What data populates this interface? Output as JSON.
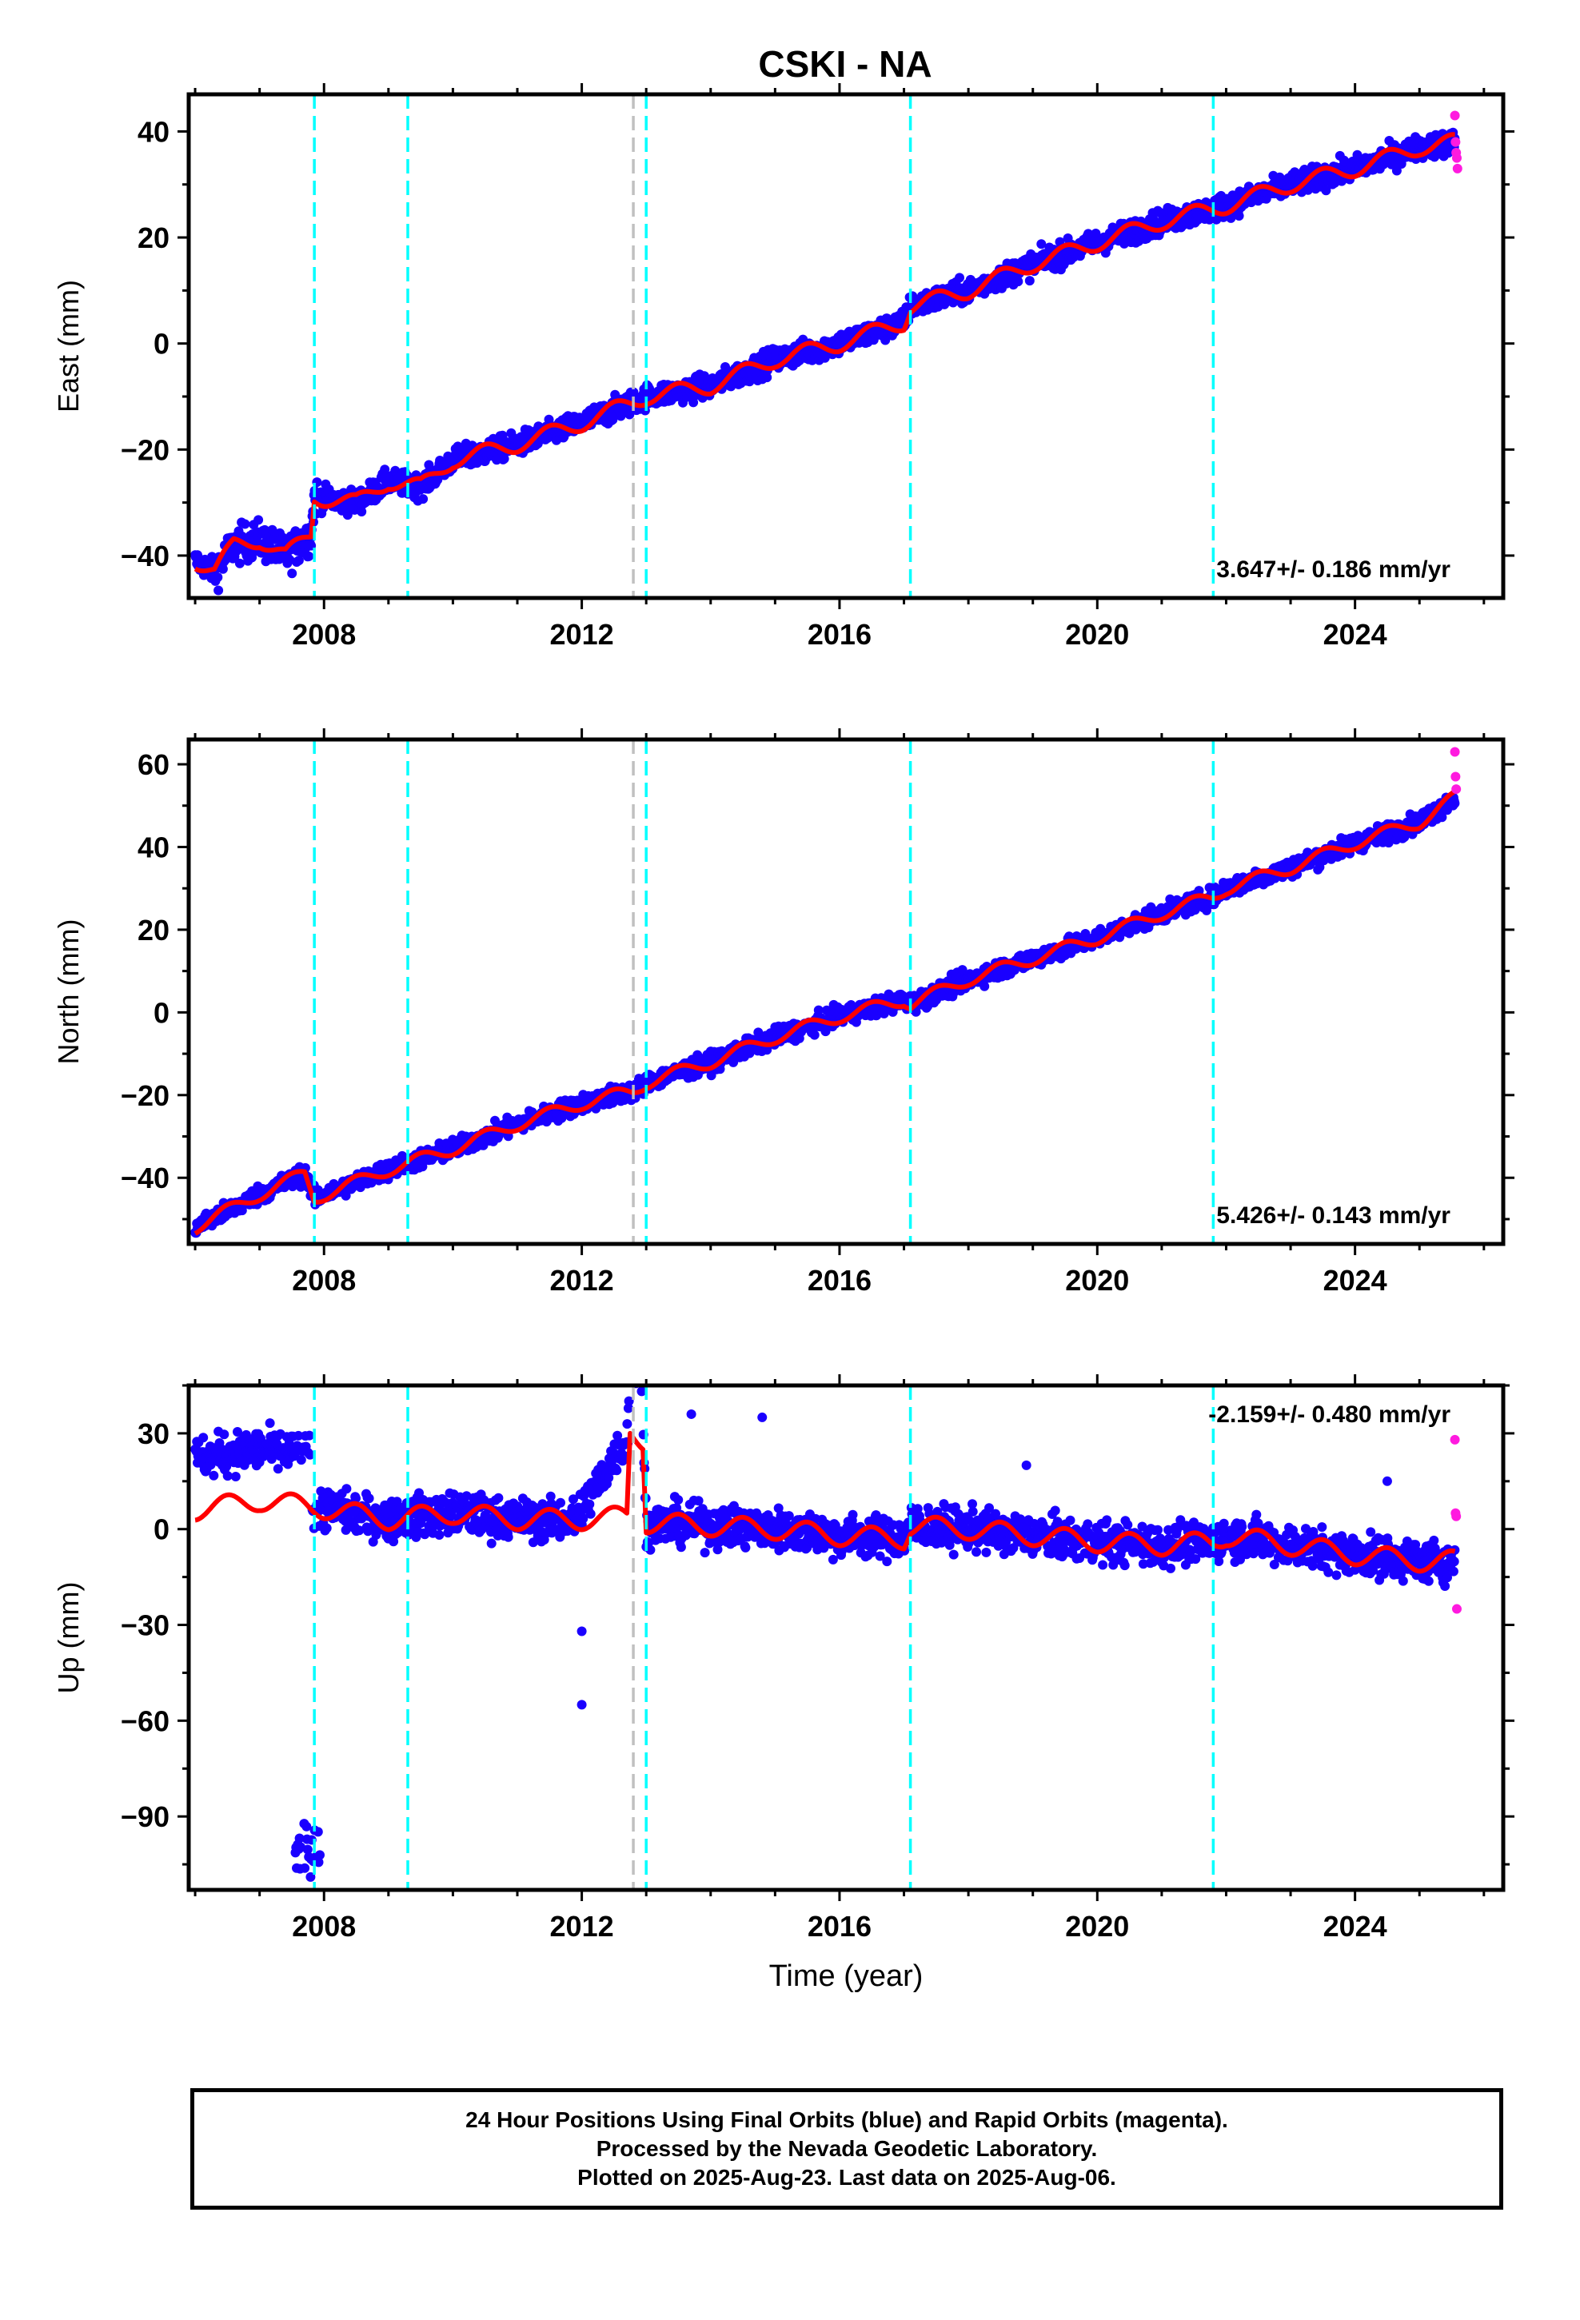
{
  "title": "CSKI - NA",
  "colors": {
    "final_orbits": "#1a00ff",
    "rapid_orbits": "#ff1adf",
    "model": "#ff0000",
    "equipment_change": "#00ffff",
    "other_event": "#c0c0c0"
  },
  "footer": {
    "line1": "24 Hour Positions Using Final Orbits (blue) and Rapid Orbits (magenta).",
    "line2": "Processed by the Nevada Geodetic Laboratory.",
    "line3": "Plotted on 2025-Aug-23. Last data on 2025-Aug-06."
  },
  "chart_data": [
    {
      "type": "scatter",
      "component": "East",
      "ylabel": "East (mm)",
      "xlabel": "",
      "xlim": [
        2005.9,
        2026.3
      ],
      "ylim": [
        -48,
        47
      ],
      "x_ticks": [
        2008,
        2012,
        2016,
        2020,
        2024
      ],
      "y_ticks": [
        -40,
        -20,
        0,
        20,
        40
      ],
      "rate_label": "3.647+/- 0.186 mm/yr",
      "rate_label_position": "bottom-right",
      "model_keypoints": [
        [
          2006.0,
          -41
        ],
        [
          2006.3,
          -43
        ],
        [
          2006.6,
          -38
        ],
        [
          2007.0,
          -37
        ],
        [
          2007.4,
          -40
        ],
        [
          2007.8,
          -36
        ],
        [
          2007.85,
          -29
        ],
        [
          2008.5,
          -30
        ],
        [
          2009.0,
          -26
        ],
        [
          2009.5,
          -27
        ],
        [
          2010.0,
          -22
        ],
        [
          2011.0,
          -19
        ],
        [
          2012.0,
          -15
        ],
        [
          2012.8,
          -11
        ],
        [
          2013.0,
          -10
        ],
        [
          2014.0,
          -8
        ],
        [
          2015.0,
          -3
        ],
        [
          2016.0,
          0
        ],
        [
          2017.0,
          4
        ],
        [
          2017.1,
          7
        ],
        [
          2018.0,
          10
        ],
        [
          2019.0,
          15
        ],
        [
          2020.0,
          19
        ],
        [
          2021.0,
          23
        ],
        [
          2022.0,
          26
        ],
        [
          2023.0,
          30
        ],
        [
          2024.0,
          33
        ],
        [
          2025.0,
          37
        ],
        [
          2025.55,
          38
        ]
      ],
      "rapid_points": [
        [
          2025.55,
          43
        ],
        [
          2025.56,
          38
        ],
        [
          2025.57,
          36
        ],
        [
          2025.58,
          35
        ],
        [
          2025.59,
          33
        ]
      ],
      "equipment_changes": [
        2007.85,
        2009.3,
        2013.0,
        2017.1,
        2021.8
      ],
      "other_events": [
        2012.8
      ]
    },
    {
      "type": "scatter",
      "component": "North",
      "ylabel": "North (mm)",
      "xlabel": "",
      "xlim": [
        2005.9,
        2026.3
      ],
      "ylim": [
        -56,
        66
      ],
      "x_ticks": [
        2008,
        2012,
        2016,
        2020,
        2024
      ],
      "y_ticks": [
        -40,
        -20,
        0,
        20,
        40,
        60
      ],
      "rate_label": "5.426+/- 0.143 mm/yr",
      "rate_label_position": "bottom-right",
      "model_keypoints": [
        [
          2006.0,
          -52
        ],
        [
          2007.0,
          -44
        ],
        [
          2007.7,
          -39
        ],
        [
          2007.85,
          -45
        ],
        [
          2009.0,
          -38
        ],
        [
          2010.0,
          -33
        ],
        [
          2011.0,
          -27
        ],
        [
          2012.0,
          -22
        ],
        [
          2012.8,
          -19
        ],
        [
          2013.0,
          -17
        ],
        [
          2014.0,
          -12
        ],
        [
          2015.0,
          -6
        ],
        [
          2016.0,
          -1
        ],
        [
          2017.0,
          3
        ],
        [
          2017.1,
          2
        ],
        [
          2018.0,
          8
        ],
        [
          2019.0,
          13
        ],
        [
          2020.0,
          18
        ],
        [
          2021.0,
          24
        ],
        [
          2021.8,
          28
        ],
        [
          2022.0,
          30
        ],
        [
          2023.0,
          35
        ],
        [
          2024.0,
          41
        ],
        [
          2025.0,
          46
        ],
        [
          2025.55,
          52
        ]
      ],
      "rapid_points": [
        [
          2025.55,
          63
        ],
        [
          2025.56,
          57
        ],
        [
          2025.57,
          54
        ]
      ],
      "equipment_changes": [
        2007.85,
        2009.3,
        2013.0,
        2017.1,
        2021.8
      ],
      "other_events": [
        2012.8
      ]
    },
    {
      "type": "scatter",
      "component": "Up",
      "ylabel": "Up (mm)",
      "xlabel": "Time (year)",
      "xlim": [
        2005.9,
        2026.3
      ],
      "ylim": [
        -113,
        45
      ],
      "x_ticks": [
        2008,
        2012,
        2016,
        2020,
        2024
      ],
      "y_ticks": [
        -90,
        -60,
        -30,
        0,
        30
      ],
      "rate_label": "-2.159+/- 0.480 mm/yr",
      "rate_label_position": "top-right",
      "model_keypoints": [
        [
          2006.0,
          6
        ],
        [
          2007.0,
          9
        ],
        [
          2007.85,
          7
        ],
        [
          2009.0,
          3
        ],
        [
          2010.0,
          5
        ],
        [
          2011.0,
          3
        ],
        [
          2012.0,
          3
        ],
        [
          2012.7,
          4
        ],
        [
          2012.75,
          30
        ],
        [
          2012.95,
          28
        ],
        [
          2013.0,
          2
        ],
        [
          2014.0,
          1
        ],
        [
          2015.0,
          0
        ],
        [
          2016.0,
          -2
        ],
        [
          2017.0,
          -3
        ],
        [
          2017.1,
          1
        ],
        [
          2018.0,
          0
        ],
        [
          2019.0,
          -2
        ],
        [
          2020.0,
          -4
        ],
        [
          2021.0,
          -5
        ],
        [
          2021.8,
          -4
        ],
        [
          2022.0,
          -2
        ],
        [
          2023.0,
          -5
        ],
        [
          2024.0,
          -8
        ],
        [
          2025.0,
          -10
        ],
        [
          2025.55,
          -10
        ]
      ],
      "rapid_points": [
        [
          2025.55,
          28
        ],
        [
          2025.56,
          5
        ],
        [
          2025.57,
          4
        ],
        [
          2025.58,
          -25
        ]
      ],
      "equipment_changes": [
        2007.85,
        2009.3,
        2013.0,
        2017.1,
        2021.8
      ],
      "other_events": [
        2012.8
      ]
    }
  ]
}
